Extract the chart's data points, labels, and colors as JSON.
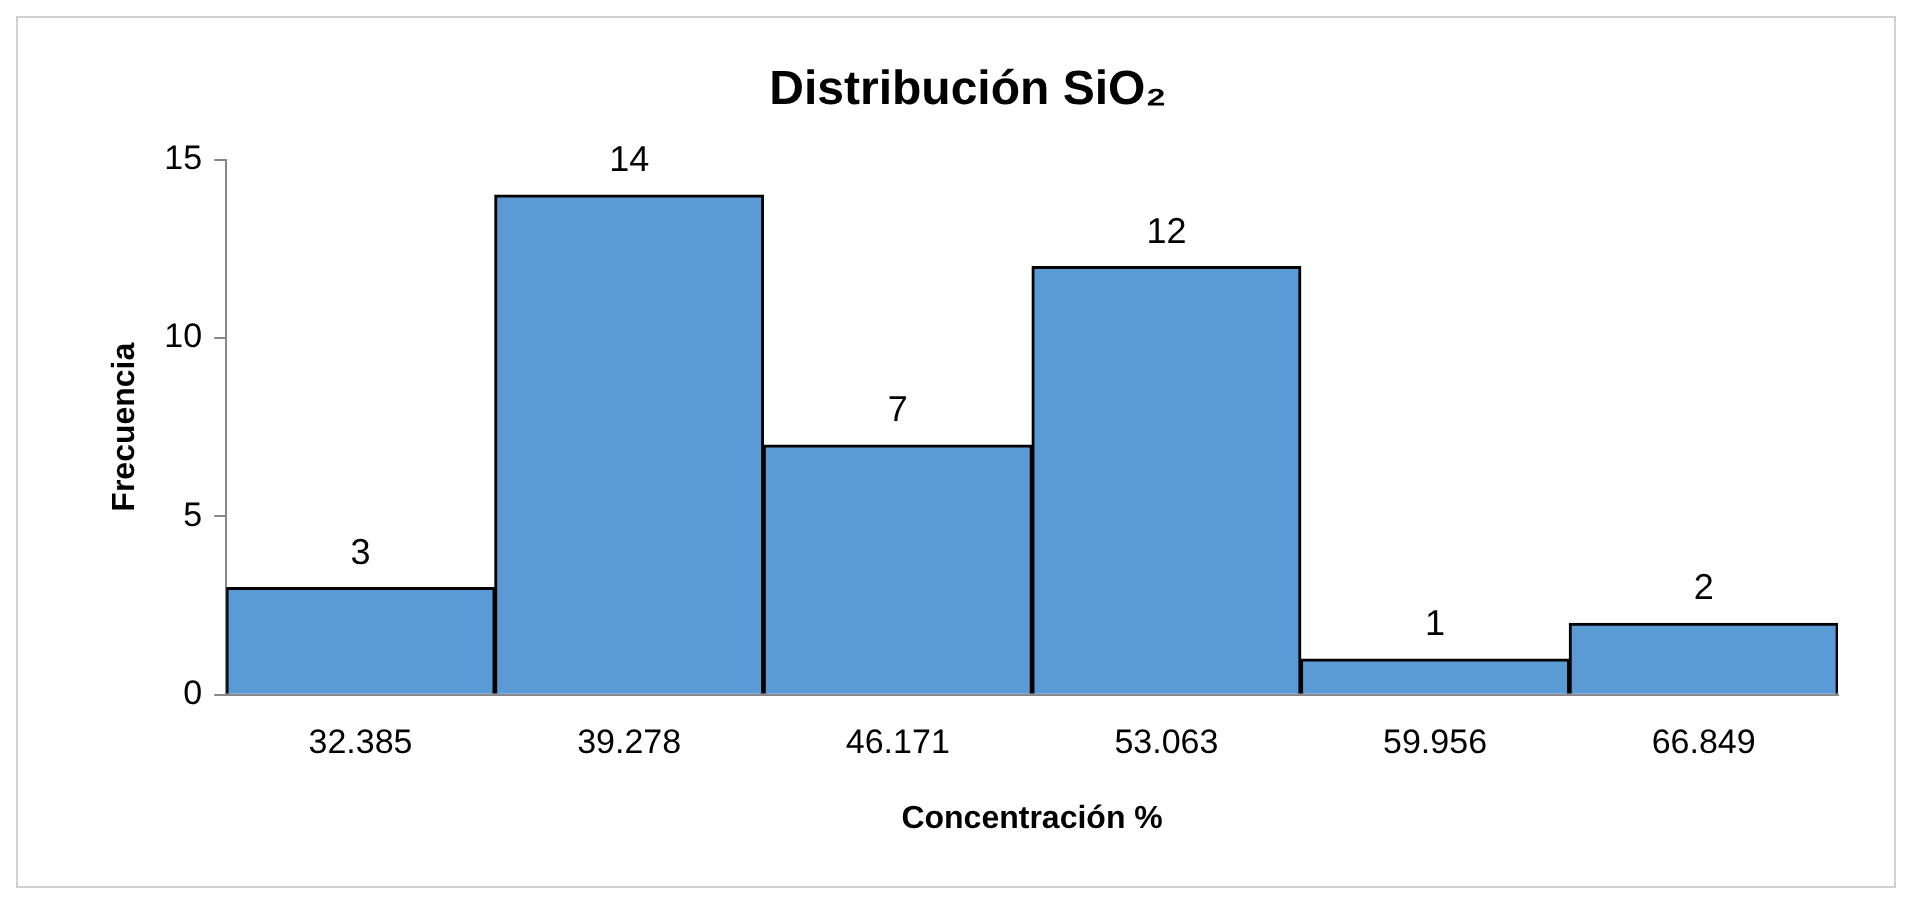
{
  "chart_data": {
    "type": "bar",
    "title": "Distribución SiO₂",
    "xlabel": "Concentración %",
    "ylabel": "Frecuencia",
    "categories": [
      "32.385",
      "39.278",
      "46.171",
      "53.063",
      "59.956",
      "66.849"
    ],
    "values": [
      3,
      14,
      7,
      12,
      1,
      2
    ],
    "color": "#5b9bd5",
    "ylim": [
      0,
      15
    ],
    "yticks": [
      0,
      5,
      10,
      15
    ],
    "data_labels": true
  }
}
